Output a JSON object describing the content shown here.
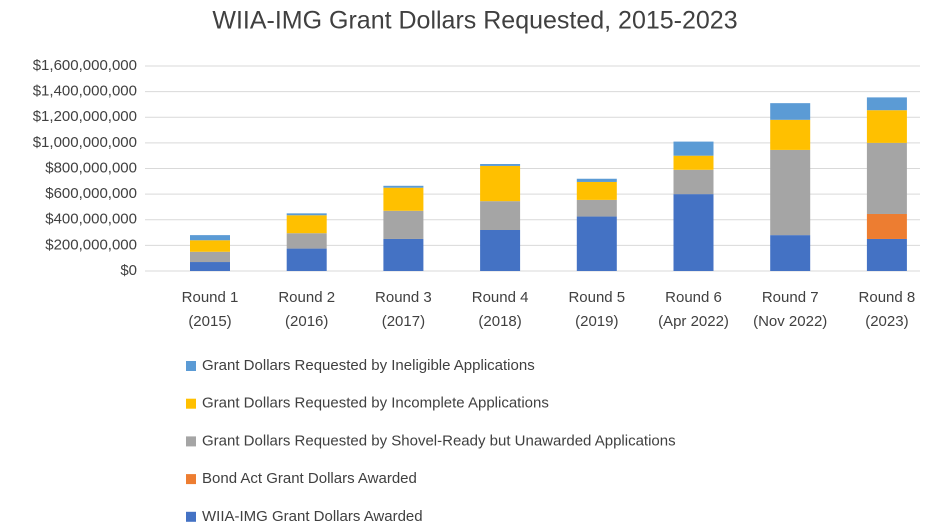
{
  "chart_data": {
    "type": "stacked_bar",
    "title": "WIIA-IMG Grant Dollars Requested, 2015-2023",
    "categories": [
      [
        "Round 1",
        "(2015)"
      ],
      [
        "Round 2",
        "(2016)"
      ],
      [
        "Round 3",
        "(2017)"
      ],
      [
        "Round 4",
        "(2018)"
      ],
      [
        "Round 5",
        "(2019)"
      ],
      [
        "Round 6",
        "(Apr 2022)"
      ],
      [
        "Round 7",
        "(Nov 2022)"
      ],
      [
        "Round 8",
        "(2023)"
      ]
    ],
    "series": [
      {
        "name": "WIIA-IMG Grant Dollars Awarded",
        "color": "#4472c4",
        "values": [
          70000000,
          175000000,
          250000000,
          320000000,
          425000000,
          600000000,
          280000000,
          250000000
        ]
      },
      {
        "name": "Bond Act Grant Dollars Awarded",
        "color": "#ed7d31",
        "values": [
          0,
          0,
          0,
          0,
          0,
          0,
          0,
          195000000
        ]
      },
      {
        "name": "Grant Dollars Requested by Shovel-Ready but Unawarded Applications",
        "color": "#a5a5a5",
        "values": [
          80000000,
          120000000,
          220000000,
          225000000,
          130000000,
          190000000,
          665000000,
          555000000
        ]
      },
      {
        "name": "Grant Dollars Requested by Incomplete Applications",
        "color": "#ffc000",
        "values": [
          90000000,
          140000000,
          180000000,
          275000000,
          140000000,
          110000000,
          235000000,
          255000000
        ]
      },
      {
        "name": "Grant Dollars Requested by Ineligible Applications",
        "color": "#5b9bd5",
        "values": [
          40000000,
          15000000,
          15000000,
          15000000,
          25000000,
          110000000,
          130000000,
          100000000
        ]
      }
    ],
    "ylim": [
      0,
      1600000000
    ],
    "yticks": [
      {
        "value": 0,
        "label": "$0"
      },
      {
        "value": 200000000,
        "label": "$200,000,000"
      },
      {
        "value": 400000000,
        "label": "$400,000,000"
      },
      {
        "value": 600000000,
        "label": "$600,000,000"
      },
      {
        "value": 800000000,
        "label": "$800,000,000"
      },
      {
        "value": 1000000000,
        "label": "$1,000,000,000"
      },
      {
        "value": 1200000000,
        "label": "$1,200,000,000"
      },
      {
        "value": 1400000000,
        "label": "$1,400,000,000"
      },
      {
        "value": 1600000000,
        "label": "$1,600,000,000"
      }
    ],
    "grid": true,
    "legend": "bottom"
  }
}
